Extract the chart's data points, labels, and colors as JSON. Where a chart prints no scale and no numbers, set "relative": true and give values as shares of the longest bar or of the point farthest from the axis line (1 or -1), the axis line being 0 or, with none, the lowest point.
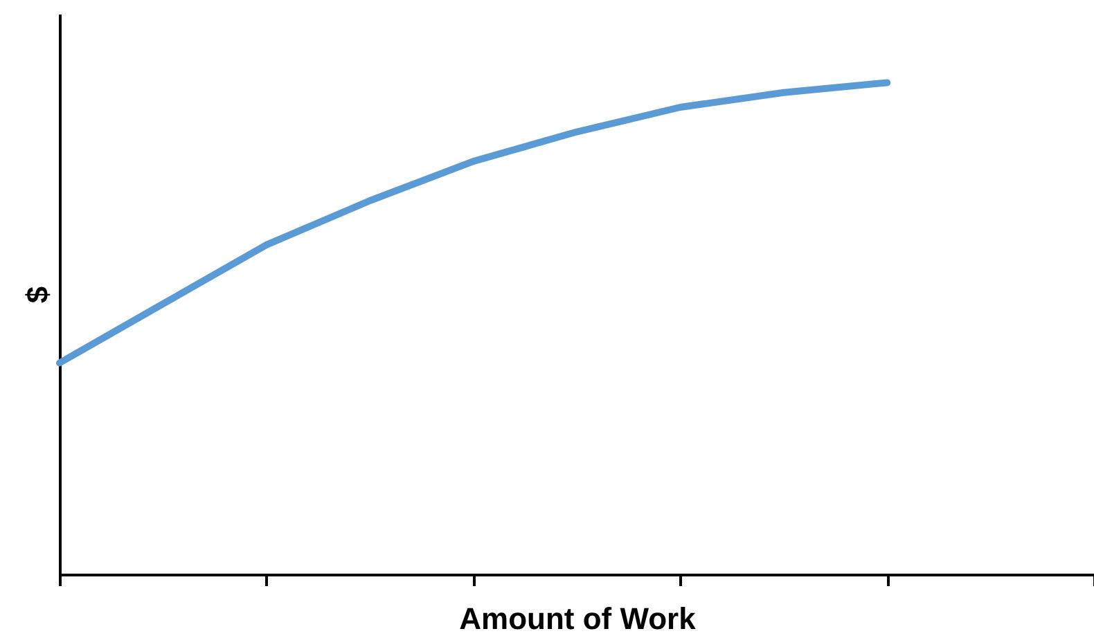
{
  "chart_data": {
    "type": "line",
    "xlabel": "Amount of Work",
    "ylabel": "$",
    "relative": true,
    "categories": [
      null,
      null,
      null,
      null,
      null,
      null,
      null,
      null,
      null,
      null,
      null
    ],
    "values": [
      0.43,
      0.55,
      0.67,
      0.76,
      0.84,
      0.9,
      0.95,
      0.98,
      1,
      null,
      null
    ],
    "color": "#5b9bd5",
    "grid": false,
    "marker": "none",
    "line_style": "solid"
  }
}
